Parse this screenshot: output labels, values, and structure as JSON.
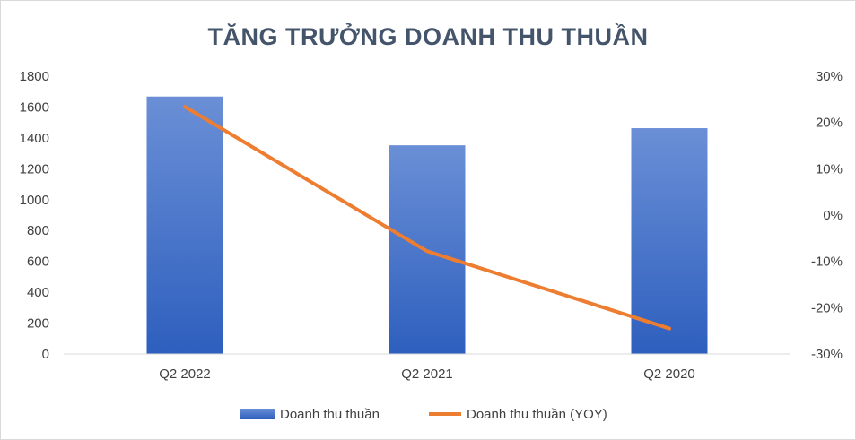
{
  "chart_data": {
    "type": "bar",
    "title": "TĂNG TRƯỞNG DOANH THU THUẦN",
    "categories": [
      "Q2 2022",
      "Q2 2021",
      "Q2 2020"
    ],
    "series": [
      {
        "name": "Doanh thu thuần",
        "type": "bar",
        "axis": "left",
        "values": [
          1668,
          1352,
          1463
        ],
        "color": "#4472c4"
      },
      {
        "name": "Doanh thu thuần (YOY)",
        "type": "line",
        "axis": "right",
        "values": [
          0.234,
          -0.078,
          -0.245
        ],
        "color": "#ed7d31"
      }
    ],
    "y_left": {
      "min": 0,
      "max": 1800,
      "step": 200,
      "ticks": [
        "0",
        "200",
        "400",
        "600",
        "800",
        "1000",
        "1200",
        "1400",
        "1600",
        "1800"
      ]
    },
    "y_right": {
      "min": -0.3,
      "max": 0.3,
      "step": 0.1,
      "ticks": [
        "-30%",
        "-20%",
        "-10%",
        "0%",
        "10%",
        "20%",
        "30%"
      ]
    },
    "grid": false,
    "legend_position": "bottom"
  }
}
